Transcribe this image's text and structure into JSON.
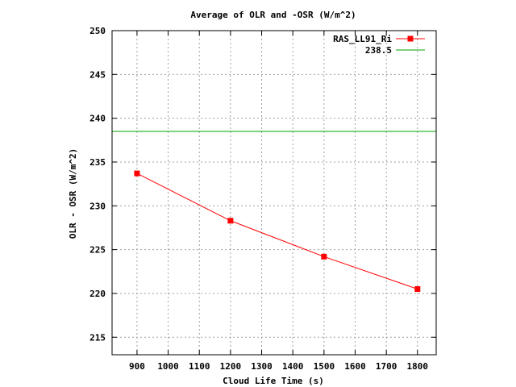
{
  "chart_data": {
    "type": "line",
    "title": "Average of OLR and -OSR (W/m^2)",
    "xlabel": "Cloud Life Time (s)",
    "ylabel": "OLR - OSR (W/m^2)",
    "xlim": [
      820,
      1860
    ],
    "ylim": [
      213,
      250
    ],
    "x_ticks": [
      900,
      1000,
      1100,
      1200,
      1300,
      1400,
      1500,
      1600,
      1700,
      1800
    ],
    "y_ticks": [
      215,
      220,
      225,
      230,
      235,
      240,
      245,
      250
    ],
    "grid": true,
    "legend_position": "top-right",
    "series": [
      {
        "name": "RAS_LL91_Ri",
        "color": "#ff0000",
        "marker": "square",
        "x": [
          900,
          1200,
          1500,
          1800
        ],
        "y": [
          233.7,
          228.3,
          224.2,
          220.5
        ]
      }
    ],
    "reference_lines": [
      {
        "name": "238.5",
        "color": "#00a000",
        "y": 238.5
      }
    ]
  }
}
